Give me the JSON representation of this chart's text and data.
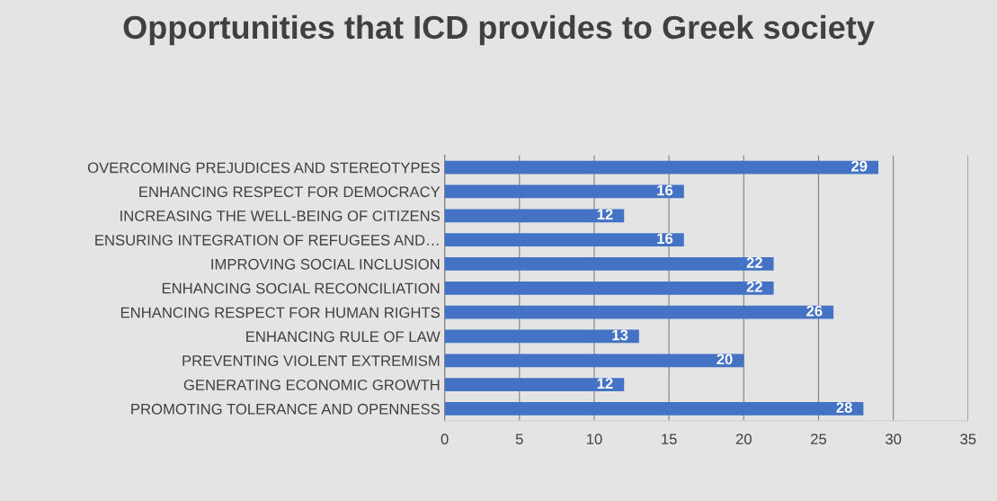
{
  "chart_data": {
    "type": "bar",
    "orientation": "horizontal",
    "title": "Opportunities that ICD provides to Greek society",
    "categories": [
      "OVERCOMING PREJUDICES AND STEREOTYPES",
      "ENHANCING RESPECT FOR DEMOCRACY",
      "INCREASING THE WELL-BEING OF CITIZENS",
      "ENSURING INTEGRATION OF REFUGEES AND…",
      "IMPROVING SOCIAL INCLUSION",
      "ENHANCING SOCIAL RECONCILIATION",
      "ENHANCING RESPECT FOR HUMAN RIGHTS",
      "ENHANCING RULE OF LAW",
      "PREVENTING VIOLENT EXTREMISM",
      "GENERATING ECONOMIC GROWTH",
      "PROMOTING TOLERANCE AND OPENNESS"
    ],
    "values": [
      29,
      16,
      12,
      16,
      22,
      22,
      26,
      13,
      20,
      12,
      28
    ],
    "color": "#4472c4",
    "xlim": [
      0,
      35
    ],
    "xticks": [
      0,
      5,
      10,
      15,
      20,
      25,
      30,
      35
    ],
    "grid": "x",
    "data_labels": true
  }
}
